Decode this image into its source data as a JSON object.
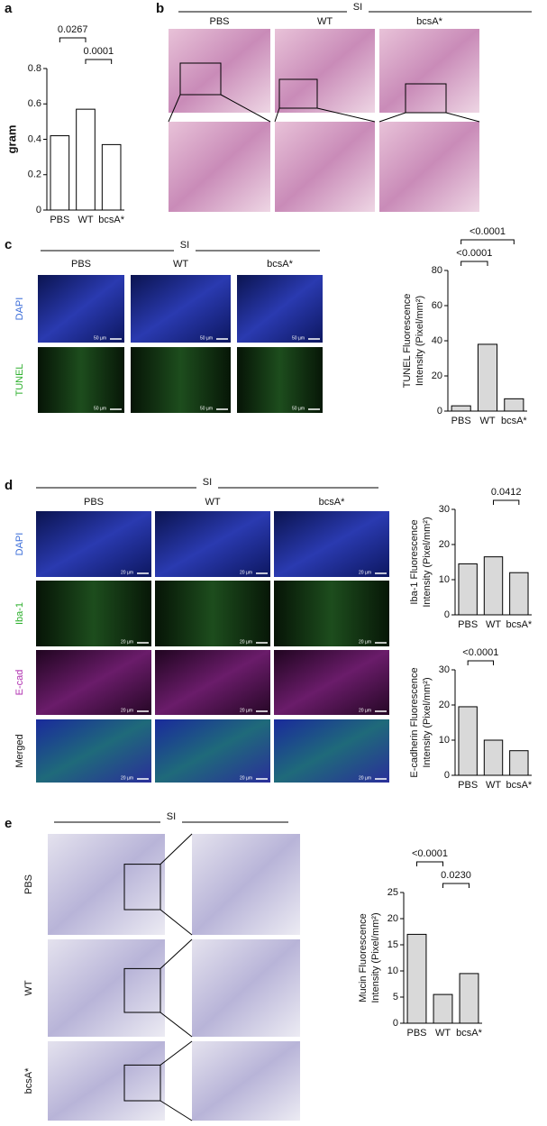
{
  "figure": {
    "panel_labels": [
      "a",
      "b",
      "c",
      "d",
      "e"
    ],
    "b": {
      "region": "SI",
      "columns": [
        "PBS",
        "WT",
        "bcsA*"
      ]
    },
    "c": {
      "region": "SI",
      "columns": [
        "PBS",
        "WT",
        "bcsA*"
      ],
      "rows": [
        "DAPI",
        "TUNEL"
      ],
      "scale_bar": "50 µm"
    },
    "d": {
      "region": "SI",
      "columns": [
        "PBS",
        "WT",
        "bcsA*"
      ],
      "rows": [
        "DAPI",
        "Iba-1",
        "E-cad",
        "Merged"
      ],
      "scale_bar": "20 µm"
    },
    "e": {
      "region": "SI",
      "rows": [
        "PBS",
        "WT",
        "bcsA*"
      ]
    }
  },
  "chart_data": [
    {
      "type": "bar",
      "ylabel": [
        "gram"
      ],
      "categories": [
        "PBS",
        "WT",
        "bcsA*"
      ],
      "values": [
        0.42,
        0.57,
        0.37
      ],
      "color": "#ffffff",
      "ylim": [
        0,
        0.8
      ],
      "yticks": [
        0,
        0.2,
        0.4,
        0.6,
        0.8
      ],
      "annotations": [
        {
          "text": "0.0267",
          "between": [
            "PBS",
            "WT"
          ]
        },
        {
          "text": "0.0001",
          "between": [
            "WT",
            "bcsA*"
          ]
        }
      ]
    },
    {
      "type": "bar",
      "ylabel": [
        "TUNEL Fluorescence",
        "Intensity (Pixel/mm²)"
      ],
      "categories": [
        "PBS",
        "WT",
        "bcsA*"
      ],
      "values": [
        3,
        38,
        7
      ],
      "color": "#d9d9d9",
      "ylim": [
        0,
        80
      ],
      "yticks": [
        0,
        20,
        40,
        60,
        80
      ],
      "annotations": [
        {
          "text": "<0.0001",
          "between": [
            "PBS",
            "bcsA*"
          ]
        },
        {
          "text": "<0.0001",
          "between": [
            "PBS",
            "WT"
          ]
        }
      ]
    },
    {
      "type": "bar",
      "ylabel": [
        "Iba-1 Fluorescence",
        "Intensity (Pixel/mm²)"
      ],
      "categories": [
        "PBS",
        "WT",
        "bcsA*"
      ],
      "values": [
        14.5,
        16.5,
        12
      ],
      "color": "#d9d9d9",
      "ylim": [
        0,
        30
      ],
      "yticks": [
        0,
        10,
        20,
        30
      ],
      "annotations": [
        {
          "text": "0.0412",
          "between": [
            "WT",
            "bcsA*"
          ]
        }
      ]
    },
    {
      "type": "bar",
      "ylabel": [
        "E-cadherin Fluorescence",
        "Intensity (Pixel/mm²)"
      ],
      "categories": [
        "PBS",
        "WT",
        "bcsA*"
      ],
      "values": [
        19.5,
        10,
        7
      ],
      "color": "#d9d9d9",
      "ylim": [
        0,
        30
      ],
      "yticks": [
        0,
        10,
        20,
        30
      ],
      "annotations": [
        {
          "text": "<0.0001",
          "between": [
            "PBS",
            "WT"
          ]
        }
      ]
    },
    {
      "type": "bar",
      "ylabel": [
        "Mucin Fluorescence",
        "Intensity (Pixel/mm²)"
      ],
      "categories": [
        "PBS",
        "WT",
        "bcsA*"
      ],
      "values": [
        17,
        5.5,
        9.5
      ],
      "color": "#d9d9d9",
      "ylim": [
        0,
        25
      ],
      "yticks": [
        0,
        5,
        10,
        15,
        20,
        25
      ],
      "annotations": [
        {
          "text": "<0.0001",
          "between": [
            "PBS",
            "WT"
          ]
        },
        {
          "text": "0.0230",
          "between": [
            "WT",
            "bcsA*"
          ]
        }
      ]
    }
  ]
}
